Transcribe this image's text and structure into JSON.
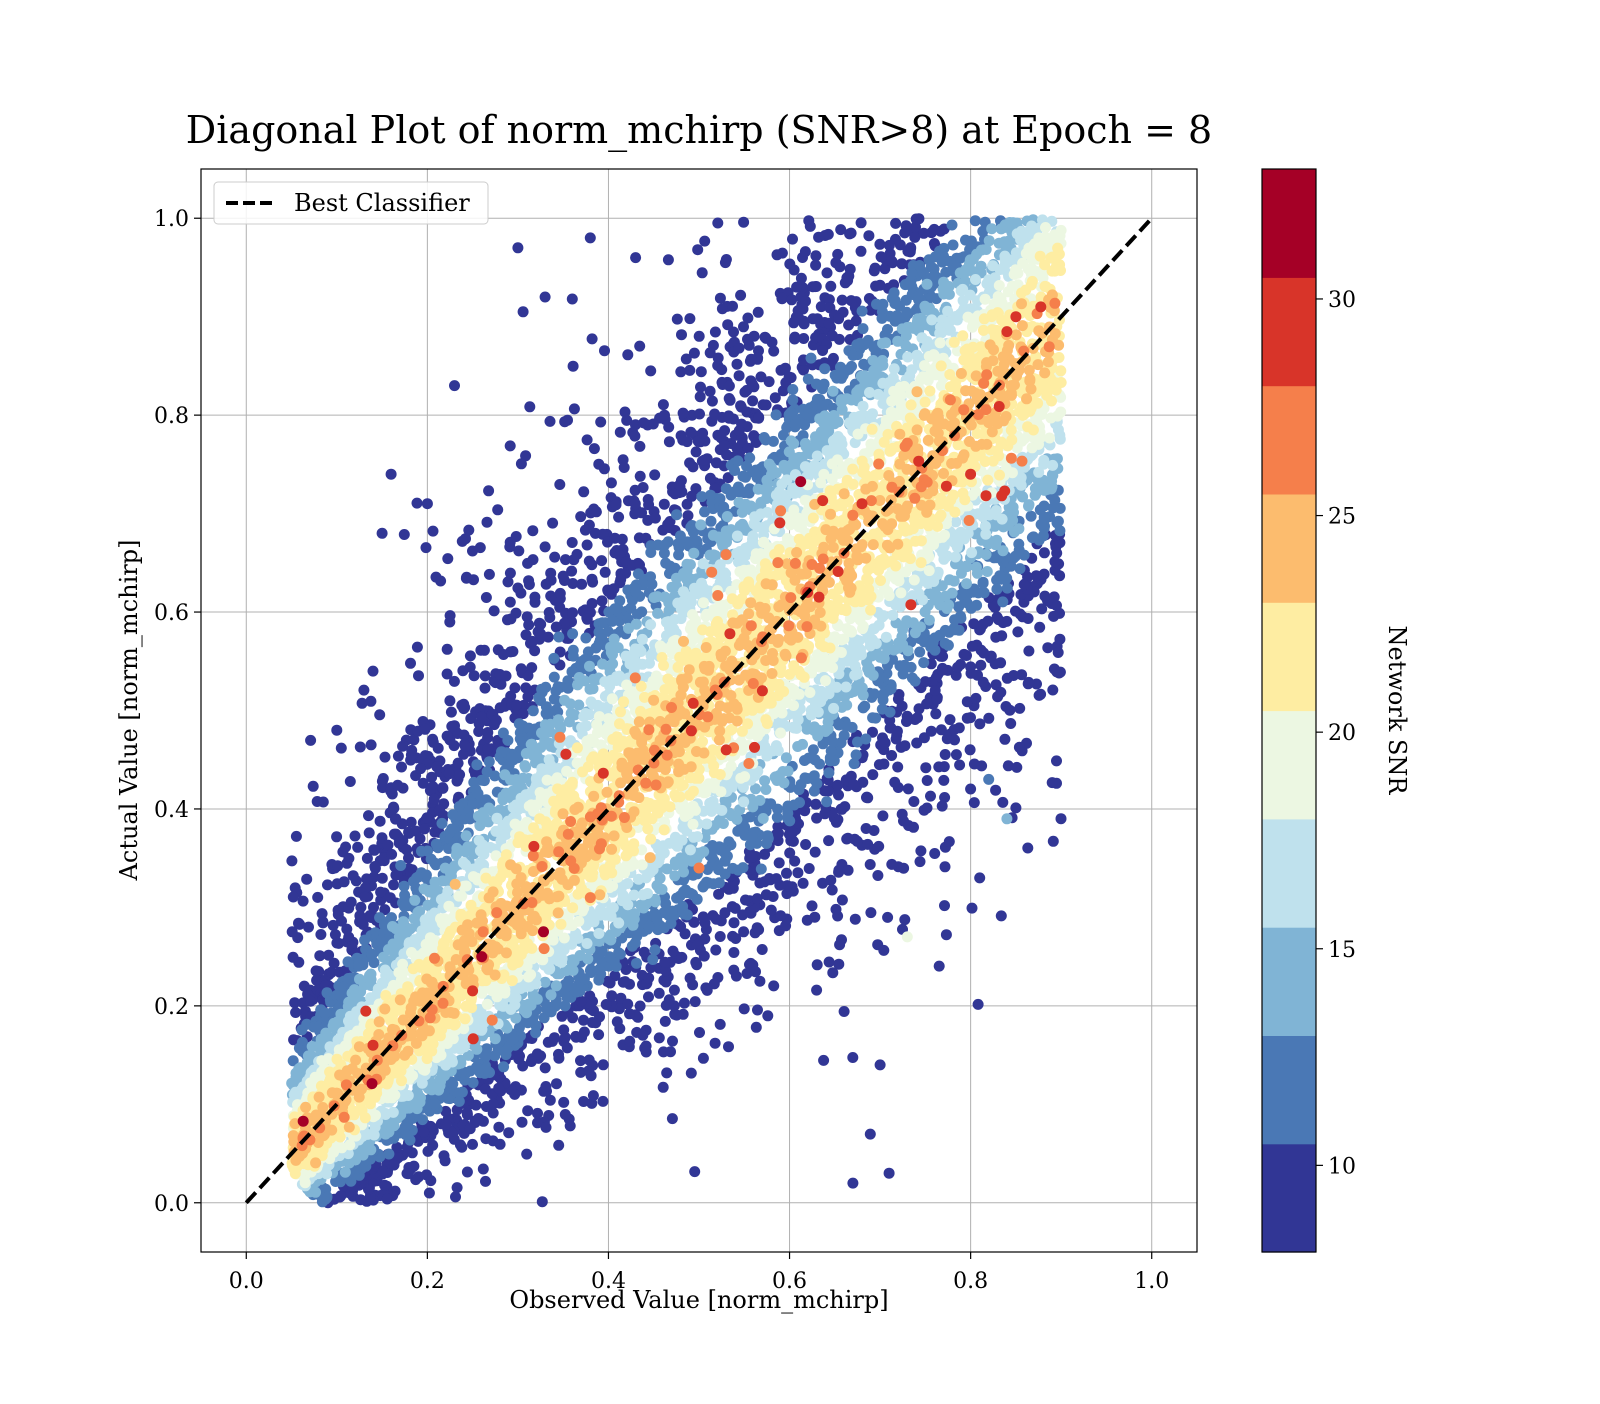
{
  "chart_data": {
    "type": "scatter",
    "title": "Diagonal Plot of norm_mchirp (SNR>8) at Epoch = 8",
    "xlabel": "Observed Value [norm_mchirp]",
    "ylabel": "Actual Value [norm_mchirp]",
    "xlim": [
      -0.05,
      1.05
    ],
    "ylim": [
      -0.05,
      1.05
    ],
    "xticks": [
      "0.0",
      "0.2",
      "0.4",
      "0.6",
      "0.8",
      "1.0"
    ],
    "yticks": [
      "0.0",
      "0.2",
      "0.4",
      "0.6",
      "0.8",
      "1.0"
    ],
    "grid": true,
    "legend": {
      "placement": "upper-left",
      "entries": [
        "Best Classifier"
      ]
    },
    "reference_line": {
      "name": "Best Classifier",
      "style": "dashed",
      "color": "#000000",
      "x": [
        0.0,
        1.0
      ],
      "y": [
        0.0,
        1.0
      ]
    },
    "colorbar": {
      "label": "Network SNR",
      "range": [
        8,
        33
      ],
      "tick_labels": [
        "10",
        "15",
        "20",
        "25",
        "30"
      ],
      "tick_values": [
        10,
        15,
        20,
        25,
        30
      ],
      "bins": 10,
      "colors": [
        "#313695",
        "#4a78b5",
        "#80b4d5",
        "#bfe1ed",
        "#ecf7e2",
        "#feeda2",
        "#fcbc6e",
        "#f57f4b",
        "#d83429",
        "#a50026"
      ]
    },
    "point_cloud": {
      "n_points": 9000,
      "x_range": [
        0.05,
        0.9
      ],
      "y_range": [
        0.0,
        1.0
      ],
      "spread_perpendicular": 0.12,
      "snr_range": [
        8,
        32
      ]
    },
    "notable_points": [
      {
        "x": 0.3,
        "y": 0.97,
        "snr": 9
      },
      {
        "x": 0.38,
        "y": 0.98,
        "snr": 9
      },
      {
        "x": 0.43,
        "y": 0.96,
        "snr": 9
      },
      {
        "x": 0.33,
        "y": 0.92,
        "snr": 9
      },
      {
        "x": 0.23,
        "y": 0.83,
        "snr": 9
      },
      {
        "x": 0.16,
        "y": 0.74,
        "snr": 9
      },
      {
        "x": 0.2,
        "y": 0.71,
        "snr": 9
      },
      {
        "x": 0.15,
        "y": 0.68,
        "snr": 9
      },
      {
        "x": 0.14,
        "y": 0.54,
        "snr": 9
      },
      {
        "x": 0.1,
        "y": 0.48,
        "snr": 9
      },
      {
        "x": 0.67,
        "y": 0.02,
        "snr": 9
      },
      {
        "x": 0.71,
        "y": 0.03,
        "snr": 9
      },
      {
        "x": 0.7,
        "y": 0.14,
        "snr": 9
      },
      {
        "x": 0.81,
        "y": 0.33,
        "snr": 9
      },
      {
        "x": 0.84,
        "y": 0.39,
        "snr": 13
      },
      {
        "x": 0.82,
        "y": 0.43,
        "snr": 11
      },
      {
        "x": 0.26,
        "y": 0.25,
        "snr": 32
      },
      {
        "x": 0.14,
        "y": 0.16,
        "snr": 30
      },
      {
        "x": 0.53,
        "y": 0.46,
        "snr": 30
      },
      {
        "x": 0.68,
        "y": 0.71,
        "snr": 30
      },
      {
        "x": 0.8,
        "y": 0.74,
        "snr": 28
      },
      {
        "x": 0.85,
        "y": 0.9,
        "snr": 28
      },
      {
        "x": 0.62,
        "y": 0.62,
        "snr": 28
      },
      {
        "x": 0.57,
        "y": 0.52,
        "snr": 29
      },
      {
        "x": 0.5,
        "y": 0.34,
        "snr": 27
      },
      {
        "x": 0.38,
        "y": 0.31,
        "snr": 27
      },
      {
        "x": 0.73,
        "y": 0.27,
        "snr": 19
      }
    ]
  }
}
